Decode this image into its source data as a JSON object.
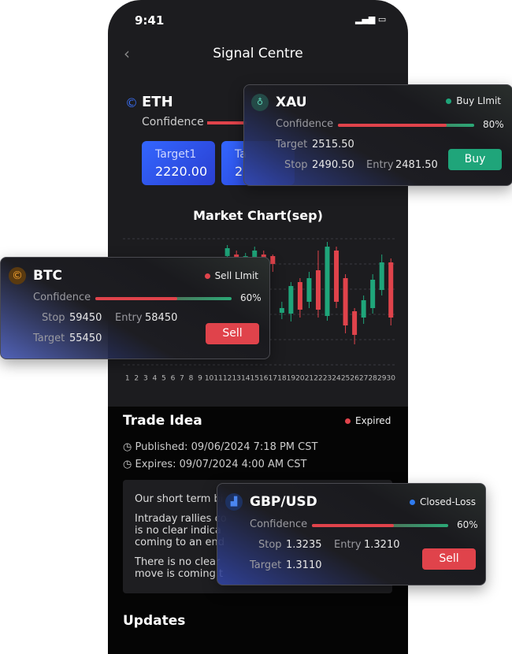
{
  "status_bar": {
    "time": "9:41"
  },
  "header": {
    "title": "Signal Centre"
  },
  "eth": {
    "symbol": "ETH",
    "confidence_label": "Confidence",
    "targets": [
      {
        "label": "Target1",
        "value": "2220.00"
      },
      {
        "label": "Ta",
        "value": "2"
      }
    ]
  },
  "market_chart": {
    "type": "candlestick",
    "title": "Market Chart(sep)",
    "categories": [
      1,
      2,
      3,
      4,
      5,
      6,
      7,
      8,
      9,
      10,
      11,
      12,
      13,
      14,
      15,
      16,
      17,
      18,
      19,
      20,
      21,
      22,
      23,
      24,
      25,
      26,
      27,
      28,
      29,
      30
    ],
    "open": [
      null,
      null,
      null,
      null,
      null,
      null,
      null,
      null,
      null,
      null,
      null,
      138,
      140,
      128,
      130,
      140,
      138,
      66,
      65,
      105,
      80,
      120,
      62,
      145,
      110,
      68,
      60,
      72,
      95,
      130
    ],
    "high": [
      null,
      null,
      null,
      null,
      null,
      null,
      null,
      null,
      null,
      null,
      null,
      152,
      145,
      142,
      150,
      145,
      140,
      80,
      105,
      110,
      118,
      145,
      156,
      150,
      115,
      72,
      88,
      115,
      140,
      135
    ],
    "low": [
      null,
      null,
      null,
      null,
      null,
      null,
      null,
      null,
      null,
      null,
      null,
      132,
      128,
      122,
      125,
      120,
      118,
      58,
      55,
      60,
      72,
      60,
      56,
      72,
      40,
      26,
      52,
      65,
      88,
      50
    ],
    "close": [
      null,
      null,
      null,
      null,
      null,
      null,
      null,
      null,
      null,
      null,
      null,
      148,
      132,
      138,
      145,
      130,
      128,
      72,
      100,
      70,
      110,
      70,
      150,
      80,
      50,
      38,
      82,
      108,
      130,
      60
    ]
  },
  "trade_idea": {
    "title": "Trade Idea",
    "status": "Expired",
    "published": "Published: 09/06/2024 7:18 PM CST",
    "expires": "Expires: 09/07/2024 4:00 AM CST",
    "paragraphs": [
      [
        "Our short term bi"
      ],
      [
        "Intraday rallies co",
        "is no clear indica",
        "coming to an end"
      ],
      [
        "There is no clear",
        "move is coming t"
      ]
    ]
  },
  "updates": {
    "title": "Updates"
  },
  "signals": [
    {
      "symbol": "XAU",
      "status": "Buy LImit",
      "confidence_label": "Confidence",
      "confidence": {
        "value": 80,
        "label": "80%"
      },
      "target_label": "Target",
      "target": "2515.50",
      "stop_label": "Stop",
      "stop": "2490.50",
      "entry_label": "Entry",
      "entry": "2481.50",
      "action": "Buy"
    },
    {
      "symbol": "BTC",
      "status": "Sell LImit",
      "confidence_label": "Confidence",
      "confidence": {
        "value": 60,
        "label": "60%"
      },
      "target_label": "Target",
      "target": "55450",
      "stop_label": "Stop",
      "stop": "59450",
      "entry_label": "Entry",
      "entry": "58450",
      "action": "Sell"
    },
    {
      "symbol": "GBP/USD",
      "status": "Closed-Loss",
      "confidence_label": "Confidence",
      "confidence": {
        "value": 60,
        "label": "60%"
      },
      "target_label": "Target",
      "target": "1.3110",
      "stop_label": "Stop",
      "stop": "1.3235",
      "entry_label": "Entry",
      "entry": "1.3210",
      "action": "Sell"
    }
  ]
}
